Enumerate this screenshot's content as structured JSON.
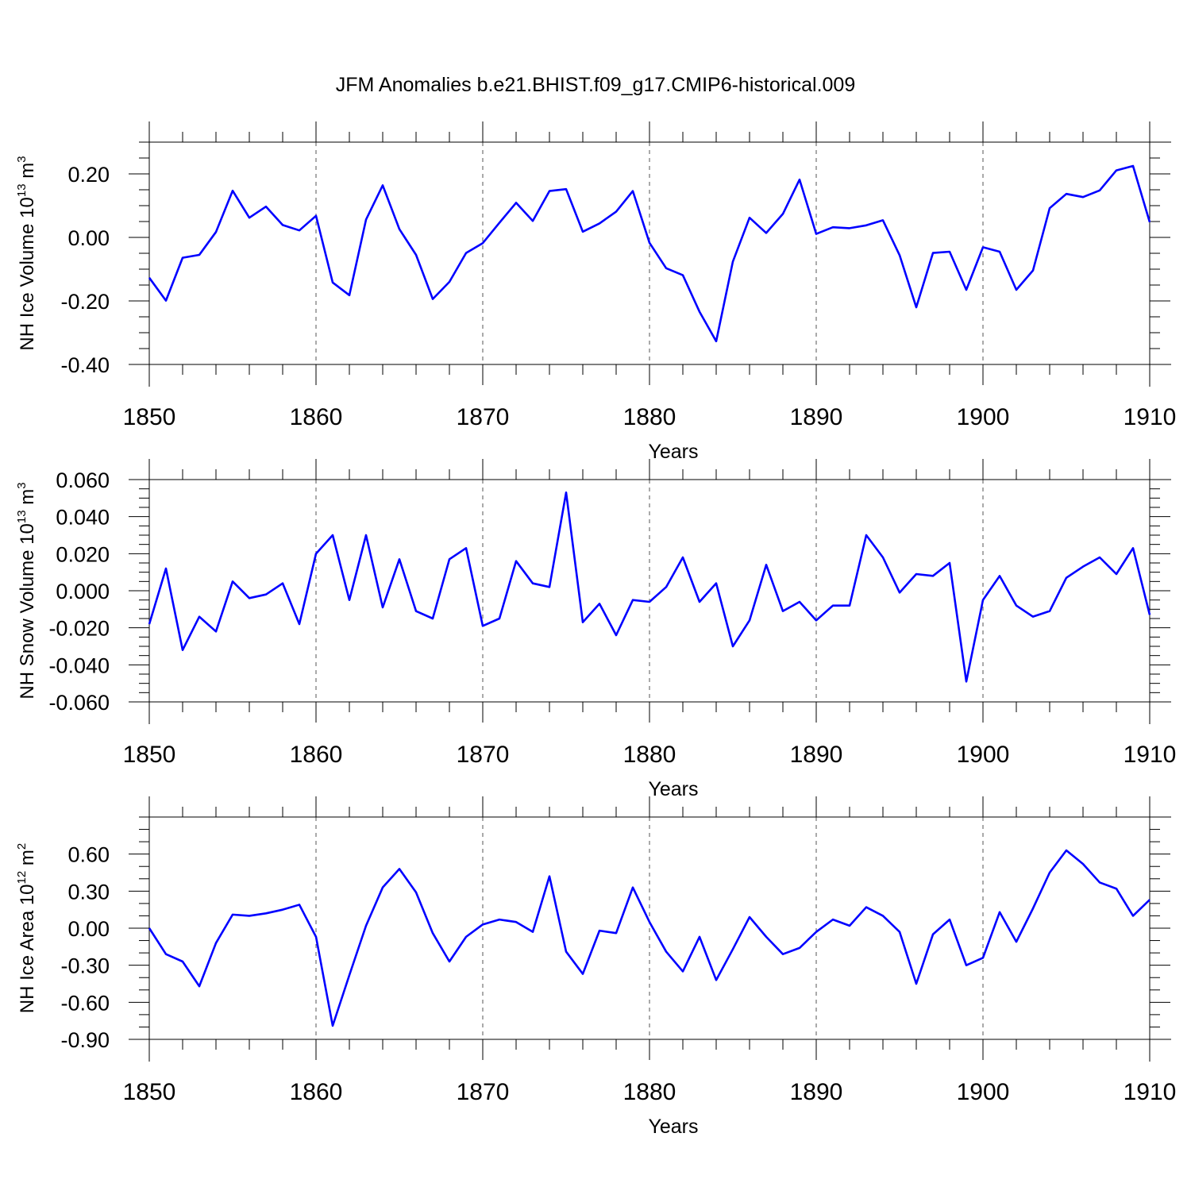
{
  "chart_data": {
    "type": "line",
    "title": "JFM Anomalies b.e21.BHIST.f09_g17.CMIP6-historical.009",
    "line_color": "#0000ff",
    "grid": "vertical dashed at x major ticks",
    "x": [
      1850,
      1851,
      1852,
      1853,
      1854,
      1855,
      1856,
      1857,
      1858,
      1859,
      1860,
      1861,
      1862,
      1863,
      1864,
      1865,
      1866,
      1867,
      1868,
      1869,
      1870,
      1871,
      1872,
      1873,
      1874,
      1875,
      1876,
      1877,
      1878,
      1879,
      1880,
      1881,
      1882,
      1883,
      1884,
      1885,
      1886,
      1887,
      1888,
      1889,
      1890,
      1891,
      1892,
      1893,
      1894,
      1895,
      1896,
      1897,
      1898,
      1899,
      1900,
      1901,
      1902,
      1903,
      1904,
      1905,
      1906,
      1907,
      1908,
      1909,
      1910
    ],
    "panels": [
      {
        "ylabel": "NH Ice Volume",
        "ylabel_unit_base": "10",
        "ylabel_unit_exp": "13",
        "ylabel_unit": "m",
        "ylabel_unit_pow": "3",
        "xlabel": "Years",
        "xlim": [
          1850,
          1910
        ],
        "xticks": [
          "1850",
          "1860",
          "1870",
          "1880",
          "1890",
          "1900",
          "1910"
        ],
        "ylim": [
          -0.4,
          0.3
        ],
        "yticks": [
          "-0.40",
          "-0.20",
          "0.00",
          "0.20"
        ],
        "ytick_values": [
          -0.4,
          -0.2,
          0.0,
          0.2
        ],
        "y_minor_step": 0.05,
        "values": [
          -0.127,
          -0.199,
          -0.064,
          -0.055,
          0.017,
          0.147,
          0.062,
          0.097,
          0.039,
          0.022,
          0.068,
          -0.142,
          -0.182,
          0.056,
          0.164,
          0.026,
          -0.055,
          -0.194,
          -0.14,
          -0.049,
          -0.018,
          0.046,
          0.109,
          0.052,
          0.146,
          0.152,
          0.018,
          0.044,
          0.081,
          0.146,
          -0.017,
          -0.097,
          -0.119,
          -0.234,
          -0.327,
          -0.076,
          0.062,
          0.014,
          0.074,
          0.182,
          0.011,
          0.032,
          0.029,
          0.038,
          0.054,
          -0.056,
          -0.22,
          -0.049,
          -0.045,
          -0.165,
          -0.031,
          -0.045,
          -0.165,
          -0.104,
          0.092,
          0.137,
          0.127,
          0.148,
          0.211,
          0.225,
          0.048
        ]
      },
      {
        "ylabel": "NH Snow Volume",
        "ylabel_unit_base": "10",
        "ylabel_unit_exp": "13",
        "ylabel_unit": "m",
        "ylabel_unit_pow": "3",
        "xlabel": "Years",
        "xlim": [
          1850,
          1910
        ],
        "xticks": [
          "1850",
          "1860",
          "1870",
          "1880",
          "1890",
          "1900",
          "1910"
        ],
        "ylim": [
          -0.06,
          0.06
        ],
        "yticks": [
          "-0.060",
          "-0.040",
          "-0.020",
          "0.000",
          "0.020",
          "0.040",
          "0.060"
        ],
        "ytick_values": [
          -0.06,
          -0.04,
          -0.02,
          0.0,
          0.02,
          0.04,
          0.06
        ],
        "y_minor_step": 0.005,
        "values": [
          -0.018,
          0.012,
          -0.032,
          -0.014,
          -0.022,
          0.005,
          -0.004,
          -0.002,
          0.004,
          -0.018,
          0.02,
          0.03,
          -0.005,
          0.03,
          -0.009,
          0.017,
          -0.011,
          -0.015,
          0.017,
          0.023,
          -0.019,
          -0.015,
          0.016,
          0.004,
          0.002,
          0.053,
          -0.017,
          -0.007,
          -0.024,
          -0.005,
          -0.006,
          0.002,
          0.018,
          -0.006,
          0.004,
          -0.03,
          -0.016,
          0.014,
          -0.011,
          -0.006,
          -0.016,
          -0.008,
          -0.008,
          0.03,
          0.018,
          -0.001,
          0.009,
          0.008,
          0.015,
          -0.049,
          -0.005,
          0.008,
          -0.008,
          -0.014,
          -0.011,
          0.007,
          0.013,
          0.018,
          0.009,
          0.023,
          -0.013
        ]
      },
      {
        "ylabel": "NH Ice Area",
        "ylabel_unit_base": "10",
        "ylabel_unit_exp": "12",
        "ylabel_unit": "m",
        "ylabel_unit_pow": "2",
        "xlabel": "Years",
        "xlim": [
          1850,
          1910
        ],
        "xticks": [
          "1850",
          "1860",
          "1870",
          "1880",
          "1890",
          "1900",
          "1910"
        ],
        "ylim": [
          -0.9,
          0.9
        ],
        "yticks": [
          "-0.90",
          "-0.60",
          "-0.30",
          "0.00",
          "0.30",
          "0.60"
        ],
        "ytick_values": [
          -0.9,
          -0.6,
          -0.3,
          0.0,
          0.3,
          0.6
        ],
        "y_minor_step": 0.1,
        "values": [
          0.0,
          -0.21,
          -0.27,
          -0.47,
          -0.12,
          0.11,
          0.1,
          0.12,
          0.15,
          0.19,
          -0.07,
          -0.79,
          -0.38,
          0.02,
          0.33,
          0.48,
          0.29,
          -0.04,
          -0.27,
          -0.07,
          0.03,
          0.07,
          0.05,
          -0.03,
          0.42,
          -0.19,
          -0.37,
          -0.02,
          -0.04,
          0.33,
          0.05,
          -0.19,
          -0.35,
          -0.07,
          -0.42,
          -0.17,
          0.09,
          -0.07,
          -0.21,
          -0.16,
          -0.03,
          0.07,
          0.02,
          0.17,
          0.1,
          -0.03,
          -0.45,
          -0.05,
          0.07,
          -0.3,
          -0.24,
          0.13,
          -0.11,
          0.16,
          0.45,
          0.63,
          0.52,
          0.37,
          0.32,
          0.1,
          0.23
        ]
      }
    ]
  }
}
